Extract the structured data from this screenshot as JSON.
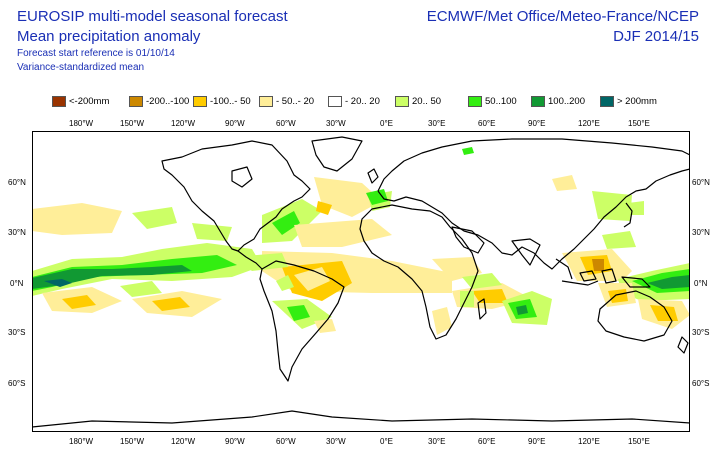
{
  "header": {
    "title_line1": "EUROSIP multi-model seasonal forecast",
    "title_line2": "Mean precipitation anomaly",
    "forecast_ref": "Forecast start reference is 01/10/14",
    "method": "Variance-standardized mean",
    "provider": "ECMWF/Met Office/Meteo-France/NCEP",
    "period": "DJF 2014/15"
  },
  "legend": [
    {
      "label": "<-200mm",
      "color": "#993300"
    },
    {
      "label": "-200..-100",
      "color": "#cc8800"
    },
    {
      "label": "-100..- 50",
      "color": "#ffcc00"
    },
    {
      "label": "- 50..- 20",
      "color": "#ffee99"
    },
    {
      "label": "- 20.. 20",
      "color": "#ffffff"
    },
    {
      "label": "20.. 50",
      "color": "#ccff66"
    },
    {
      "label": "50..100",
      "color": "#33ee11"
    },
    {
      "label": "100..200",
      "color": "#119933"
    },
    {
      "label": "> 200mm",
      "color": "#006666"
    }
  ],
  "axes": {
    "lon_labels": [
      "180°W",
      "150°W",
      "120°W",
      "90°W",
      "60°W",
      "30°W",
      "0°E",
      "30°E",
      "60°E",
      "90°E",
      "120°E",
      "150°E"
    ],
    "lat_labels": [
      "60°N",
      "30°N",
      "0°N",
      "30°S",
      "60°S"
    ]
  },
  "colors": {
    "text": "#1a2fb5",
    "coast": "#000000"
  }
}
